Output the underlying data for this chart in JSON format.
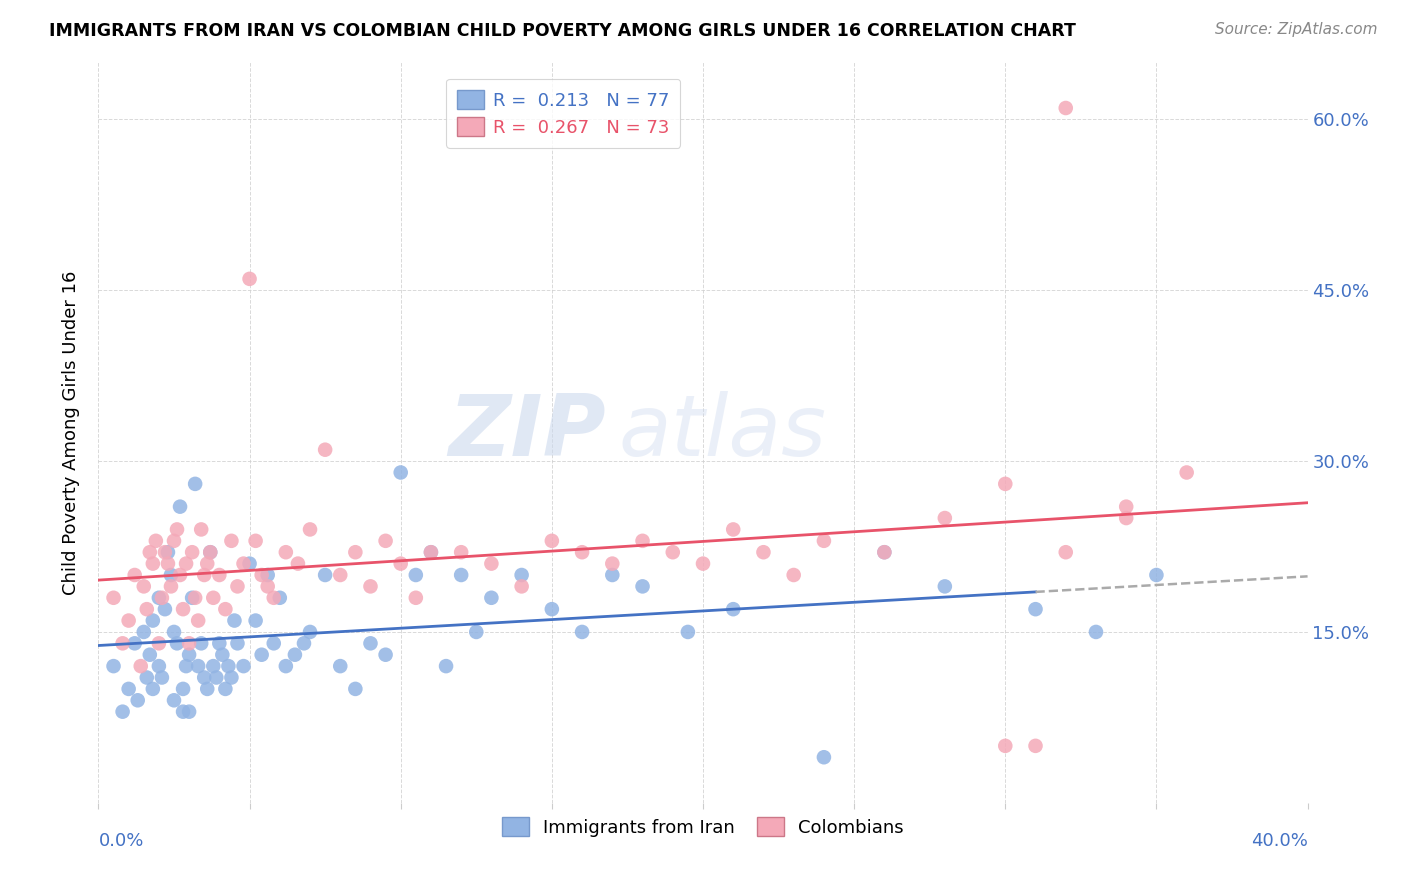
{
  "title": "IMMIGRANTS FROM IRAN VS COLOMBIAN CHILD POVERTY AMONG GIRLS UNDER 16 CORRELATION CHART",
  "source": "Source: ZipAtlas.com",
  "ylabel": "Child Poverty Among Girls Under 16",
  "ytick_labels": [
    "",
    "15.0%",
    "30.0%",
    "45.0%",
    "60.0%"
  ],
  "ytick_values": [
    0.0,
    0.15,
    0.3,
    0.45,
    0.6
  ],
  "xlim": [
    0.0,
    0.4
  ],
  "ylim": [
    0.0,
    0.65
  ],
  "watermark_zip": "ZIP",
  "watermark_atlas": "atlas",
  "legend_iran_r": "0.213",
  "legend_iran_n": "77",
  "legend_col_r": "0.267",
  "legend_col_n": "73",
  "iran_color": "#92b4e3",
  "colombian_color": "#f4a9b8",
  "iran_line_color": "#4472c4",
  "colombian_line_color": "#e8536a",
  "iran_scatter_x": [
    0.005,
    0.008,
    0.01,
    0.012,
    0.013,
    0.015,
    0.016,
    0.017,
    0.018,
    0.018,
    0.02,
    0.02,
    0.021,
    0.022,
    0.023,
    0.024,
    0.025,
    0.025,
    0.026,
    0.027,
    0.028,
    0.028,
    0.029,
    0.03,
    0.03,
    0.031,
    0.032,
    0.033,
    0.034,
    0.035,
    0.036,
    0.037,
    0.038,
    0.039,
    0.04,
    0.041,
    0.042,
    0.043,
    0.044,
    0.045,
    0.046,
    0.048,
    0.05,
    0.052,
    0.054,
    0.056,
    0.058,
    0.06,
    0.062,
    0.065,
    0.068,
    0.07,
    0.075,
    0.08,
    0.085,
    0.09,
    0.095,
    0.1,
    0.105,
    0.11,
    0.115,
    0.12,
    0.125,
    0.13,
    0.14,
    0.15,
    0.16,
    0.17,
    0.18,
    0.195,
    0.21,
    0.24,
    0.26,
    0.28,
    0.31,
    0.33,
    0.35
  ],
  "iran_scatter_y": [
    0.12,
    0.08,
    0.1,
    0.14,
    0.09,
    0.15,
    0.11,
    0.13,
    0.16,
    0.1,
    0.18,
    0.12,
    0.11,
    0.17,
    0.22,
    0.2,
    0.09,
    0.15,
    0.14,
    0.26,
    0.1,
    0.08,
    0.12,
    0.08,
    0.13,
    0.18,
    0.28,
    0.12,
    0.14,
    0.11,
    0.1,
    0.22,
    0.12,
    0.11,
    0.14,
    0.13,
    0.1,
    0.12,
    0.11,
    0.16,
    0.14,
    0.12,
    0.21,
    0.16,
    0.13,
    0.2,
    0.14,
    0.18,
    0.12,
    0.13,
    0.14,
    0.15,
    0.2,
    0.12,
    0.1,
    0.14,
    0.13,
    0.29,
    0.2,
    0.22,
    0.12,
    0.2,
    0.15,
    0.18,
    0.2,
    0.17,
    0.15,
    0.2,
    0.19,
    0.15,
    0.17,
    0.04,
    0.22,
    0.19,
    0.17,
    0.15,
    0.2
  ],
  "colombian_scatter_x": [
    0.005,
    0.008,
    0.01,
    0.012,
    0.014,
    0.015,
    0.016,
    0.017,
    0.018,
    0.019,
    0.02,
    0.021,
    0.022,
    0.023,
    0.024,
    0.025,
    0.026,
    0.027,
    0.028,
    0.029,
    0.03,
    0.031,
    0.032,
    0.033,
    0.034,
    0.035,
    0.036,
    0.037,
    0.038,
    0.04,
    0.042,
    0.044,
    0.046,
    0.048,
    0.05,
    0.052,
    0.054,
    0.056,
    0.058,
    0.062,
    0.066,
    0.07,
    0.075,
    0.08,
    0.085,
    0.09,
    0.095,
    0.1,
    0.105,
    0.11,
    0.12,
    0.13,
    0.14,
    0.15,
    0.16,
    0.17,
    0.18,
    0.19,
    0.2,
    0.21,
    0.22,
    0.23,
    0.24,
    0.26,
    0.28,
    0.3,
    0.32,
    0.34,
    0.3,
    0.32,
    0.34,
    0.36,
    0.31
  ],
  "colombian_scatter_y": [
    0.18,
    0.14,
    0.16,
    0.2,
    0.12,
    0.19,
    0.17,
    0.22,
    0.21,
    0.23,
    0.14,
    0.18,
    0.22,
    0.21,
    0.19,
    0.23,
    0.24,
    0.2,
    0.17,
    0.21,
    0.14,
    0.22,
    0.18,
    0.16,
    0.24,
    0.2,
    0.21,
    0.22,
    0.18,
    0.2,
    0.17,
    0.23,
    0.19,
    0.21,
    0.46,
    0.23,
    0.2,
    0.19,
    0.18,
    0.22,
    0.21,
    0.24,
    0.31,
    0.2,
    0.22,
    0.19,
    0.23,
    0.21,
    0.18,
    0.22,
    0.22,
    0.21,
    0.19,
    0.23,
    0.22,
    0.21,
    0.23,
    0.22,
    0.21,
    0.24,
    0.22,
    0.2,
    0.23,
    0.22,
    0.25,
    0.28,
    0.22,
    0.26,
    0.05,
    0.61,
    0.25,
    0.29,
    0.05
  ]
}
